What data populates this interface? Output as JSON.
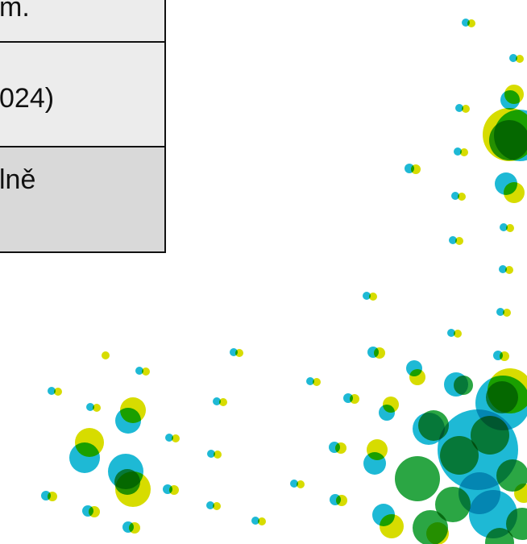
{
  "table": {
    "rows": [
      {
        "text": "m."
      },
      {
        "text": "024)"
      },
      {
        "text": "lně"
      }
    ]
  },
  "decoration": {
    "name": "dotted-bubble-pattern",
    "colors": {
      "cyan": "#1eb9d5",
      "yellow": "#d7dc00",
      "green": "#2ba644",
      "line": "#111111",
      "cell_light": "#ececec",
      "cell_dark": "#d9d9d9"
    }
  }
}
